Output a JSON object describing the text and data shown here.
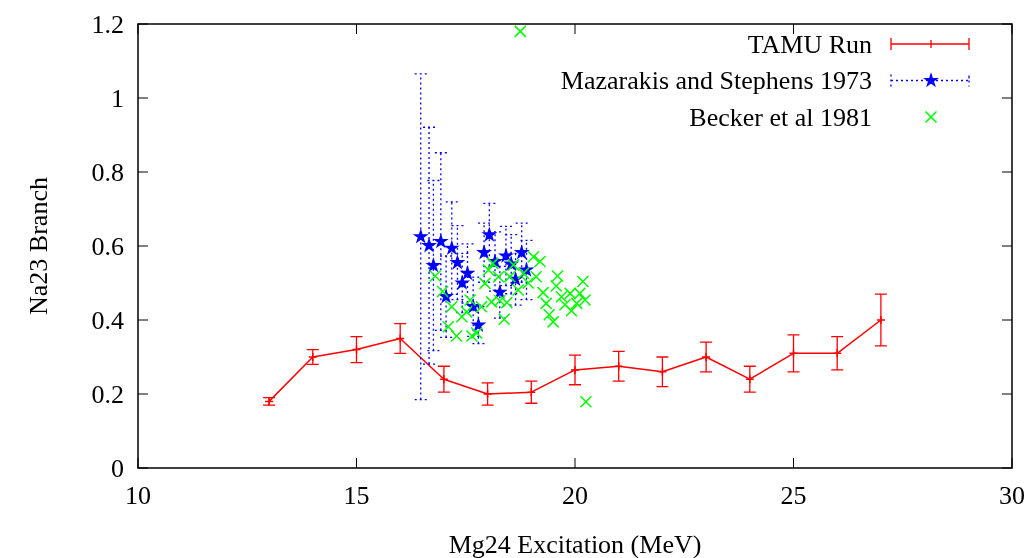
{
  "chart_data": {
    "type": "scatter",
    "xlabel": "Mg24 Excitation (MeV)",
    "ylabel": "Na23 Branch",
    "xlim": [
      10,
      30
    ],
    "xticks": [
      10,
      15,
      20,
      25,
      30
    ],
    "ylim": [
      0,
      1.2
    ],
    "yticks": [
      0,
      0.2,
      0.4,
      0.6,
      0.8,
      1,
      1.2
    ],
    "legend": "top right",
    "grid": false,
    "series": [
      {
        "name": "TAMU Run",
        "type": "line",
        "color": "#ff0000",
        "marker": "cross",
        "line_style": "solid",
        "x": [
          13,
          14,
          15,
          16,
          17,
          18,
          19,
          20,
          21,
          22,
          23,
          24,
          25,
          26,
          27
        ],
        "values": [
          0.18,
          0.3,
          0.32,
          0.35,
          0.24,
          0.2,
          0.205,
          0.265,
          0.275,
          0.26,
          0.3,
          0.24,
          0.31,
          0.31,
          0.4
        ],
        "errors": [
          0.01,
          0.02,
          0.035,
          0.04,
          0.035,
          0.03,
          0.03,
          0.04,
          0.04,
          0.04,
          0.04,
          0.035,
          0.05,
          0.045,
          0.07
        ]
      },
      {
        "name": "Mazarakis and Stephens 1973",
        "color": "#0000ff",
        "marker": "star",
        "line_style": "dotted",
        "x": [
          16.47,
          16.66,
          16.76,
          16.93,
          17.05,
          17.18,
          17.31,
          17.42,
          17.54,
          17.67,
          17.79,
          17.92,
          18.04,
          18.17,
          18.28,
          18.42,
          18.54,
          18.64,
          18.78,
          18.89
        ],
        "values": [
          0.625,
          0.601,
          0.547,
          0.612,
          0.463,
          0.594,
          0.555,
          0.5,
          0.526,
          0.436,
          0.386,
          0.582,
          0.63,
          0.558,
          0.475,
          0.573,
          0.551,
          0.51,
          0.582,
          0.535
        ],
        "errors": [
          0.44,
          0.32,
          0.23,
          0.24,
          0.11,
          0.125,
          0.1,
          0.08,
          0.08,
          0.08,
          0.05,
          0.08,
          0.085,
          0.08,
          0.07,
          0.08,
          0.08,
          0.07,
          0.08,
          0.08
        ]
      },
      {
        "name": "Becker et al 1981",
        "color": "#00ff00",
        "marker": "cross",
        "x": [
          16.8,
          16.97,
          17.18,
          17.1,
          17.29,
          17.41,
          17.52,
          17.6,
          17.64,
          17.75,
          17.86,
          17.94,
          18.02,
          18.12,
          18.25,
          18.09,
          18.28,
          18.44,
          18.38,
          18.51,
          18.59,
          18.7,
          18.82,
          18.93,
          19.05,
          19.2,
          19.11,
          19.27,
          19.34,
          19.41,
          19.5,
          19.6,
          19.57,
          19.69,
          19.77,
          19.89,
          19.92,
          20.04,
          20.11,
          20.18,
          20.23,
          20.25,
          18.75
        ],
        "values": [
          0.519,
          0.477,
          0.436,
          0.382,
          0.357,
          0.409,
          0.422,
          0.454,
          0.357,
          0.365,
          0.436,
          0.499,
          0.535,
          0.553,
          0.517,
          0.449,
          0.452,
          0.447,
          0.402,
          0.517,
          0.549,
          0.481,
          0.526,
          0.5,
          0.571,
          0.558,
          0.517,
          0.474,
          0.445,
          0.414,
          0.395,
          0.519,
          0.492,
          0.463,
          0.441,
          0.472,
          0.425,
          0.445,
          0.472,
          0.504,
          0.454,
          0.179,
          1.18
        ]
      }
    ]
  }
}
